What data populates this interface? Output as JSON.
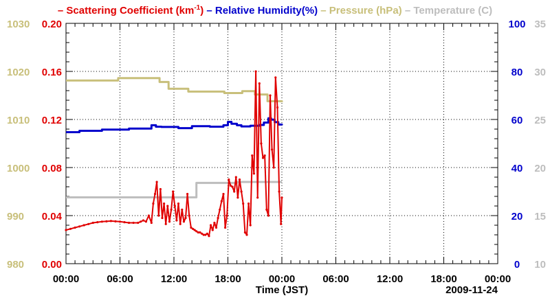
{
  "chart_data": {
    "type": "line",
    "title": "",
    "xlabel": "Time (JST)",
    "date_label": "2009-11-24",
    "x_tick_labels": [
      "00:00",
      "06:00",
      "12:00",
      "18:00",
      "00:00",
      "06:00",
      "12:00",
      "18:00",
      "00:00"
    ],
    "x_range_hours": [
      0,
      48
    ],
    "grid": true,
    "colors": {
      "scattering": "#e00000",
      "humidity": "#0000cc",
      "pressure": "#c8bf7a",
      "temperature": "#bdbdbd"
    },
    "legend": [
      {
        "key": "scattering",
        "prefix": "–",
        "label": "Scattering Coefficient (km",
        "sup": "-1",
        "suffix": ")"
      },
      {
        "key": "humidity",
        "prefix": "–",
        "label": "Relative Humidity(%)",
        "sup": "",
        "suffix": ""
      },
      {
        "key": "pressure",
        "prefix": "–",
        "label": "Pressure (hPa)",
        "sup": "",
        "suffix": ""
      },
      {
        "key": "temperature",
        "prefix": "–",
        "label": "Temperature (",
        "sup": "",
        "suffix": "C)"
      }
    ],
    "axes": {
      "pressure": {
        "side": "left-outer",
        "range": [
          980,
          1030
        ],
        "ticks": [
          "980",
          "990",
          "1000",
          "1010",
          "1020",
          "1030"
        ]
      },
      "scattering": {
        "side": "left-inner",
        "range": [
          0,
          0.2
        ],
        "ticks": [
          "0.00",
          "0.04",
          "0.08",
          "0.12",
          "0.16",
          "0.20"
        ]
      },
      "humidity": {
        "side": "right-inner",
        "range": [
          0,
          100
        ],
        "ticks": [
          "0",
          "20",
          "40",
          "60",
          "80",
          "100"
        ]
      },
      "temperature": {
        "side": "right-outer",
        "range": [
          10,
          35
        ],
        "ticks": [
          "10",
          "15",
          "20",
          "25",
          "30",
          "35"
        ]
      }
    },
    "series": [
      {
        "name": "Pressure (hPa)",
        "key": "pressure",
        "axis": "pressure",
        "step": true,
        "x": [
          0,
          5.8,
          10.4,
          11.4,
          13.6,
          17.6,
          19.6,
          21.0,
          22.4,
          24.0
        ],
        "y": [
          1018.1,
          1018.6,
          1017.8,
          1016.4,
          1015.8,
          1015.5,
          1015.9,
          1015.2,
          1013.8,
          1013.6
        ]
      },
      {
        "name": "Relative Humidity(%)",
        "key": "humidity",
        "axis": "humidity",
        "step": true,
        "x": [
          0,
          1.5,
          4.0,
          7.0,
          9.5,
          10.0,
          10.6,
          12.5,
          14.0,
          16.0,
          17.5,
          18.0,
          18.4,
          19.0,
          19.5,
          20.5,
          21.5,
          22.0,
          22.5,
          22.8,
          23.2,
          23.6,
          24.0
        ],
        "y": [
          54.7,
          55.3,
          55.8,
          56.2,
          57.6,
          57.0,
          56.9,
          56.4,
          57.2,
          57.0,
          57.6,
          59.0,
          58.2,
          57.6,
          57.1,
          57.4,
          57.7,
          58.7,
          60.5,
          59.9,
          58.9,
          57.9,
          57.6
        ]
      },
      {
        "name": "Temperature (C)",
        "key": "temperature",
        "axis": "temperature",
        "step": true,
        "x": [
          0,
          14.5,
          19.0,
          24.0
        ],
        "y": [
          16.9,
          18.4,
          18.5,
          18.5
        ]
      },
      {
        "name": "Scattering Coefficient (km-1)",
        "key": "scattering",
        "axis": "scattering",
        "step": false,
        "markers": true,
        "x": [
          0,
          0.5,
          1.0,
          1.5,
          2.0,
          2.5,
          3.0,
          3.5,
          4.0,
          4.5,
          5.0,
          5.5,
          6.0,
          6.5,
          7.0,
          7.5,
          8.0,
          8.3,
          8.6,
          8.9,
          9.2,
          9.5,
          9.7,
          9.9,
          10.1,
          10.3,
          10.5,
          10.7,
          10.9,
          11.1,
          11.3,
          11.5,
          11.7,
          11.9,
          12.1,
          12.3,
          12.5,
          12.7,
          12.9,
          13.1,
          13.3,
          13.5,
          13.7,
          13.9,
          14.1,
          14.3,
          14.5,
          14.7,
          14.9,
          15.1,
          15.3,
          15.5,
          15.7,
          15.9,
          16.1,
          16.3,
          16.5,
          16.7,
          16.9,
          17.1,
          17.3,
          17.5,
          17.7,
          17.9,
          18.1,
          18.3,
          18.5,
          18.7,
          18.9,
          19.1,
          19.3,
          19.5,
          19.7,
          19.9,
          20.1,
          20.3,
          20.5,
          20.7,
          20.9,
          21.1,
          21.3,
          21.5,
          21.7,
          21.9,
          22.1,
          22.3,
          22.5,
          22.7,
          22.9,
          23.1,
          23.3,
          23.5,
          23.7,
          23.9,
          24.0
        ],
        "y": [
          0.028,
          0.029,
          0.03,
          0.031,
          0.032,
          0.033,
          0.034,
          0.0345,
          0.035,
          0.0352,
          0.0355,
          0.0352,
          0.035,
          0.0345,
          0.034,
          0.034,
          0.034,
          0.035,
          0.036,
          0.035,
          0.04,
          0.034,
          0.05,
          0.058,
          0.068,
          0.04,
          0.062,
          0.038,
          0.05,
          0.033,
          0.048,
          0.035,
          0.045,
          0.06,
          0.048,
          0.036,
          0.05,
          0.033,
          0.045,
          0.035,
          0.038,
          0.058,
          0.04,
          0.03,
          0.029,
          0.028,
          0.027,
          0.026,
          0.026,
          0.025,
          0.024,
          0.024,
          0.025,
          0.023,
          0.032,
          0.028,
          0.034,
          0.03,
          0.038,
          0.045,
          0.052,
          0.058,
          0.03,
          0.04,
          0.07,
          0.065,
          0.064,
          0.06,
          0.072,
          0.055,
          0.07,
          0.06,
          0.05,
          0.026,
          0.024,
          0.05,
          0.032,
          0.09,
          0.075,
          0.16,
          0.055,
          0.15,
          0.1,
          0.088,
          0.09,
          0.045,
          0.04,
          0.14,
          0.095,
          0.08,
          0.155,
          0.13,
          0.06,
          0.033,
          0.055
        ]
      }
    ]
  }
}
